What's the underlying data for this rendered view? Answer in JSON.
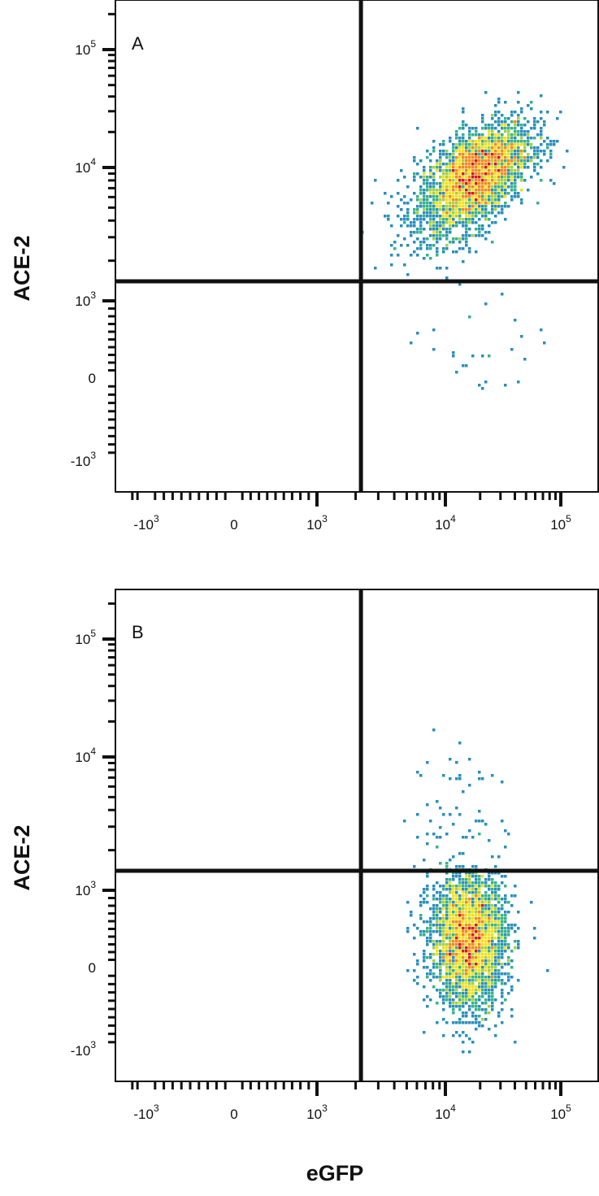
{
  "chart_data": [
    {
      "type": "scatter",
      "panel_label": "A",
      "xlabel": "eGFP",
      "ylabel": "ACE-2",
      "x_scale": "biexponential",
      "y_scale": "biexponential",
      "x_ticks": [
        {
          "value": -1000,
          "base": "-10",
          "exp": "3"
        },
        {
          "value": 0,
          "base": "0",
          "exp": ""
        },
        {
          "value": 1000,
          "base": "10",
          "exp": "3"
        },
        {
          "value": 10000,
          "base": "10",
          "exp": "4"
        },
        {
          "value": 100000,
          "base": "10",
          "exp": "5"
        }
      ],
      "y_ticks": [
        {
          "value": 100000,
          "base": "10",
          "exp": "5"
        },
        {
          "value": 10000,
          "base": "10",
          "exp": "4"
        },
        {
          "value": 1000,
          "base": "10",
          "exp": "3"
        },
        {
          "value": 0,
          "base": "0",
          "exp": ""
        },
        {
          "value": -1000,
          "base": "-10",
          "exp": "3"
        }
      ],
      "quadrant_gate": {
        "x": 2200,
        "y": 1400
      },
      "populations": [
        {
          "center_x": 18000,
          "center_y": 8500,
          "spread_x_decades": 0.24,
          "spread_y_decades": 0.22,
          "correlation": 0.55,
          "events": 3200
        },
        {
          "center_x": 20000,
          "center_y": 250,
          "spread_x_decades": 0.25,
          "spread_y_decades": 0.0,
          "correlation": 0.0,
          "events": 28
        }
      ],
      "density_colors": [
        "#2c4fa3",
        "#2a8fbd",
        "#36b38a",
        "#a6d13c",
        "#f1e11f",
        "#f28a1e",
        "#d7191c"
      ],
      "grid": false,
      "legend": "none"
    },
    {
      "type": "scatter",
      "panel_label": "B",
      "xlabel": "eGFP",
      "ylabel": "ACE-2",
      "x_scale": "biexponential",
      "y_scale": "biexponential",
      "x_ticks": [
        {
          "value": -1000,
          "base": "-10",
          "exp": "3"
        },
        {
          "value": 0,
          "base": "0",
          "exp": ""
        },
        {
          "value": 1000,
          "base": "10",
          "exp": "3"
        },
        {
          "value": 10000,
          "base": "10",
          "exp": "4"
        },
        {
          "value": 100000,
          "base": "10",
          "exp": "5"
        }
      ],
      "y_ticks": [
        {
          "value": 100000,
          "base": "10",
          "exp": "5"
        },
        {
          "value": 10000,
          "base": "10",
          "exp": "4"
        },
        {
          "value": 1000,
          "base": "10",
          "exp": "3"
        },
        {
          "value": 0,
          "base": "0",
          "exp": ""
        },
        {
          "value": -1000,
          "base": "-10",
          "exp": "3"
        }
      ],
      "quadrant_gate": {
        "x": 2200,
        "y": 1400
      },
      "populations": [
        {
          "center_x": 16000,
          "center_y": 350,
          "spread_x_decades": 0.16,
          "spread_y_decades": 0.0,
          "correlation": 0.0,
          "events": 3000
        },
        {
          "center_x": 14000,
          "center_y": 3500,
          "spread_x_decades": 0.2,
          "spread_y_decades": 0.3,
          "correlation": 0.0,
          "events": 70
        }
      ],
      "density_colors": [
        "#2c4fa3",
        "#2a8fbd",
        "#36b38a",
        "#a6d13c",
        "#f1e11f",
        "#f28a1e",
        "#d7191c"
      ],
      "grid": false,
      "legend": "none"
    }
  ],
  "shared_x_label": "eGFP"
}
